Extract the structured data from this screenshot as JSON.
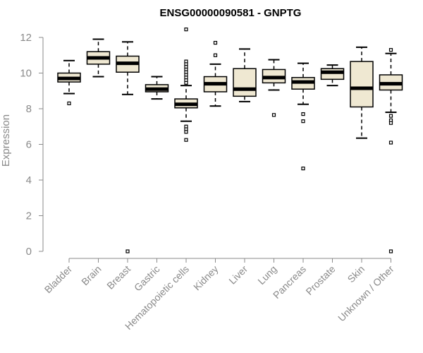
{
  "chart_data": {
    "type": "boxplot",
    "title": "ENSG00000090581 - GNPTG",
    "xlabel": "",
    "ylabel": "Expression",
    "ylim": [
      0,
      12
    ],
    "yticks": [
      0,
      2,
      4,
      6,
      8,
      10,
      12
    ],
    "grid": false,
    "box_fill": "#efe8d2",
    "categories": [
      "Bladder",
      "Brain",
      "Breast",
      "Gastric",
      "Hematopoietic cells",
      "Kidney",
      "Liver",
      "Lung",
      "Pancreas",
      "Prostate",
      "Skin",
      "Unknown / Other"
    ],
    "boxes": [
      {
        "category": "Bladder",
        "whisker_low": 8.85,
        "q1": 9.5,
        "median": 9.7,
        "q3": 10.0,
        "whisker_high": 10.7,
        "outliers": [
          8.3
        ]
      },
      {
        "category": "Brain",
        "whisker_low": 9.8,
        "q1": 10.5,
        "median": 10.85,
        "q3": 11.2,
        "whisker_high": 11.9,
        "outliers": []
      },
      {
        "category": "Breast",
        "whisker_low": 8.8,
        "q1": 10.05,
        "median": 10.55,
        "q3": 10.95,
        "whisker_high": 11.75,
        "outliers": [
          0.0
        ]
      },
      {
        "category": "Gastric",
        "whisker_low": 8.55,
        "q1": 8.95,
        "median": 9.1,
        "q3": 9.35,
        "whisker_high": 9.8,
        "outliers": []
      },
      {
        "category": "Hematopoietic cells",
        "whisker_low": 7.3,
        "q1": 8.05,
        "median": 8.25,
        "q3": 8.55,
        "whisker_high": 9.3,
        "outliers": [
          12.45,
          10.65,
          10.5,
          10.35,
          10.2,
          10.05,
          9.9,
          9.75,
          9.6,
          9.45,
          7.0,
          6.85,
          6.7,
          6.25
        ]
      },
      {
        "category": "Kidney",
        "whisker_low": 8.15,
        "q1": 8.95,
        "median": 9.4,
        "q3": 9.8,
        "whisker_high": 10.5,
        "outliers": [
          11.7,
          11.0
        ]
      },
      {
        "category": "Liver",
        "whisker_low": 8.4,
        "q1": 8.7,
        "median": 9.1,
        "q3": 10.25,
        "whisker_high": 11.35,
        "outliers": []
      },
      {
        "category": "Lung",
        "whisker_low": 9.05,
        "q1": 9.45,
        "median": 9.75,
        "q3": 10.2,
        "whisker_high": 10.75,
        "outliers": [
          7.65
        ]
      },
      {
        "category": "Pancreas",
        "whisker_low": 8.25,
        "q1": 9.1,
        "median": 9.5,
        "q3": 9.75,
        "whisker_high": 10.55,
        "outliers": [
          7.7,
          7.3,
          4.65
        ]
      },
      {
        "category": "Prostate",
        "whisker_low": 9.3,
        "q1": 9.65,
        "median": 10.05,
        "q3": 10.25,
        "whisker_high": 10.45,
        "outliers": []
      },
      {
        "category": "Skin",
        "whisker_low": 6.35,
        "q1": 8.1,
        "median": 9.15,
        "q3": 10.65,
        "whisker_high": 11.45,
        "outliers": []
      },
      {
        "category": "Unknown / Other",
        "whisker_low": 7.8,
        "q1": 9.05,
        "median": 9.4,
        "q3": 9.9,
        "whisker_high": 11.1,
        "outliers": [
          11.3,
          7.6,
          7.35,
          7.2,
          6.1,
          0.0
        ]
      }
    ]
  }
}
